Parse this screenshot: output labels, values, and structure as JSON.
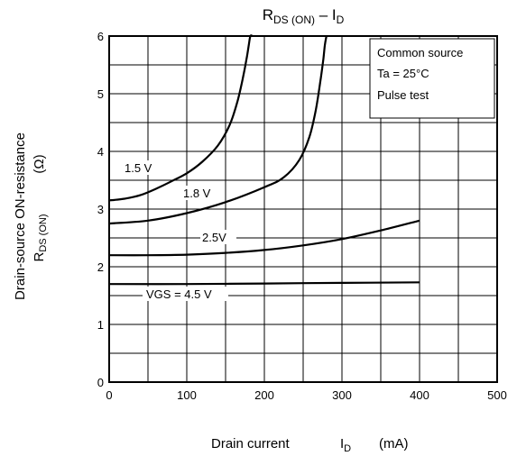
{
  "chart_data": {
    "type": "line",
    "title": {
      "main": "R",
      "main_sub": "DS (ON)",
      "sep": " – I",
      "end_sub": "D"
    },
    "xlabel": {
      "text": "Drain current",
      "sym": "I",
      "sub": "D",
      "unit": "(mA)"
    },
    "ylabel": {
      "line1": "Drain-source ON-resistance",
      "sym": "R",
      "sub": "DS (ON)",
      "unit": "(Ω)"
    },
    "xlim": [
      0,
      500
    ],
    "ylim": [
      0,
      6
    ],
    "x_ticks": [
      0,
      100,
      200,
      300,
      400,
      500
    ],
    "y_ticks": [
      0,
      1,
      2,
      3,
      4,
      5,
      6
    ],
    "grid": {
      "x_step": 50,
      "y_step": 0.5
    },
    "annotation": [
      "Common source",
      "Ta = 25°C",
      "Pulse test"
    ],
    "series": [
      {
        "label": "1.5 V",
        "x": [
          0,
          20,
          40,
          60,
          80,
          100,
          120,
          140,
          155,
          165,
          172,
          177,
          180,
          182,
          185
        ],
        "y": [
          3.15,
          3.18,
          3.24,
          3.35,
          3.48,
          3.62,
          3.82,
          4.1,
          4.45,
          4.85,
          5.25,
          5.6,
          5.85,
          6.0,
          6.0
        ]
      },
      {
        "label": "1.8 V",
        "x": [
          0,
          50,
          100,
          150,
          200,
          225,
          245,
          258,
          266,
          272,
          276,
          278,
          280
        ],
        "y": [
          2.75,
          2.8,
          2.93,
          3.12,
          3.38,
          3.55,
          3.85,
          4.25,
          4.7,
          5.2,
          5.6,
          5.85,
          6.0
        ]
      },
      {
        "label": "2.5V",
        "x": [
          0,
          50,
          100,
          150,
          200,
          250,
          300,
          350,
          400
        ],
        "y": [
          2.2,
          2.2,
          2.21,
          2.24,
          2.29,
          2.37,
          2.48,
          2.63,
          2.8
        ]
      },
      {
        "label": "VGS = 4.5 V",
        "x": [
          0,
          100,
          200,
          300,
          400
        ],
        "y": [
          1.7,
          1.7,
          1.71,
          1.72,
          1.73
        ]
      }
    ]
  }
}
